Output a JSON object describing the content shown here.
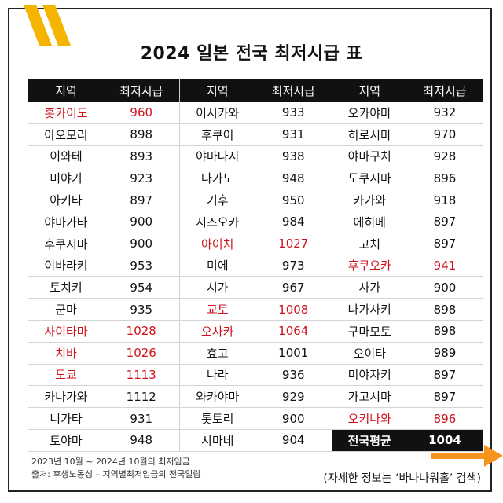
{
  "title": "2024 일본 전국 최저시급 표",
  "header": {
    "region": "지역",
    "wage": "최저시급"
  },
  "colors": {
    "highlight": "#d0121b",
    "header_bg": "#111111",
    "accent_yellow": "#f5b400",
    "accent_orange": "#f7941d"
  },
  "rows": [
    [
      {
        "r": "홋카이도",
        "w": "960",
        "hl": true
      },
      {
        "r": "이시카와",
        "w": "933",
        "hl": false
      },
      {
        "r": "오카야마",
        "w": "932",
        "hl": false
      }
    ],
    [
      {
        "r": "아오모리",
        "w": "898",
        "hl": false
      },
      {
        "r": "후쿠이",
        "w": "931",
        "hl": false
      },
      {
        "r": "히로시마",
        "w": "970",
        "hl": false
      }
    ],
    [
      {
        "r": "이와테",
        "w": "893",
        "hl": false
      },
      {
        "r": "야마나시",
        "w": "938",
        "hl": false
      },
      {
        "r": "야마구치",
        "w": "928",
        "hl": false
      }
    ],
    [
      {
        "r": "미야기",
        "w": "923",
        "hl": false
      },
      {
        "r": "나가노",
        "w": "948",
        "hl": false
      },
      {
        "r": "도쿠시마",
        "w": "896",
        "hl": false
      }
    ],
    [
      {
        "r": "아키타",
        "w": "897",
        "hl": false
      },
      {
        "r": "기후",
        "w": "950",
        "hl": false
      },
      {
        "r": "카가와",
        "w": "918",
        "hl": false
      }
    ],
    [
      {
        "r": "야마가타",
        "w": "900",
        "hl": false
      },
      {
        "r": "시즈오카",
        "w": "984",
        "hl": false
      },
      {
        "r": "에히메",
        "w": "897",
        "hl": false
      }
    ],
    [
      {
        "r": "후쿠시마",
        "w": "900",
        "hl": false
      },
      {
        "r": "아이치",
        "w": "1027",
        "hl": true
      },
      {
        "r": "고치",
        "w": "897",
        "hl": false
      }
    ],
    [
      {
        "r": "이바라키",
        "w": "953",
        "hl": false
      },
      {
        "r": "미에",
        "w": "973",
        "hl": false
      },
      {
        "r": "후쿠오카",
        "w": "941",
        "hl": true
      }
    ],
    [
      {
        "r": "토치키",
        "w": "954",
        "hl": false
      },
      {
        "r": "시가",
        "w": "967",
        "hl": false
      },
      {
        "r": "사가",
        "w": "900",
        "hl": false
      }
    ],
    [
      {
        "r": "군마",
        "w": "935",
        "hl": false
      },
      {
        "r": "교토",
        "w": "1008",
        "hl": true
      },
      {
        "r": "나가사키",
        "w": "898",
        "hl": false
      }
    ],
    [
      {
        "r": "사이타마",
        "w": "1028",
        "hl": true
      },
      {
        "r": "오사카",
        "w": "1064",
        "hl": true
      },
      {
        "r": "구마모토",
        "w": "898",
        "hl": false
      }
    ],
    [
      {
        "r": "치바",
        "w": "1026",
        "hl": true
      },
      {
        "r": "효고",
        "w": "1001",
        "hl": false
      },
      {
        "r": "오이타",
        "w": "989",
        "hl": false
      }
    ],
    [
      {
        "r": "도쿄",
        "w": "1113",
        "hl": true
      },
      {
        "r": "나라",
        "w": "936",
        "hl": false
      },
      {
        "r": "미야자키",
        "w": "897",
        "hl": false
      }
    ],
    [
      {
        "r": "카나가와",
        "w": "1112",
        "hl": false
      },
      {
        "r": "와카야마",
        "w": "929",
        "hl": false
      },
      {
        "r": "가고시마",
        "w": "897",
        "hl": false
      }
    ],
    [
      {
        "r": "니가타",
        "w": "931",
        "hl": false
      },
      {
        "r": "톳토리",
        "w": "900",
        "hl": false
      },
      {
        "r": "오키나와",
        "w": "896",
        "hl": true
      }
    ],
    [
      {
        "r": "토야마",
        "w": "948",
        "hl": false
      },
      {
        "r": "시마네",
        "w": "904",
        "hl": false
      },
      {
        "r": "전국평균",
        "w": "1004",
        "hl": false,
        "avg": true
      }
    ]
  ],
  "footer": {
    "period": "2023년 10월 ~ 2024년 10월의 최저임금",
    "source": "출처: 후생노동성 – 지역별최저임금의 전국일람",
    "search_hint": "(자세한 정보는 ‘바나나워홀’ 검색)"
  }
}
